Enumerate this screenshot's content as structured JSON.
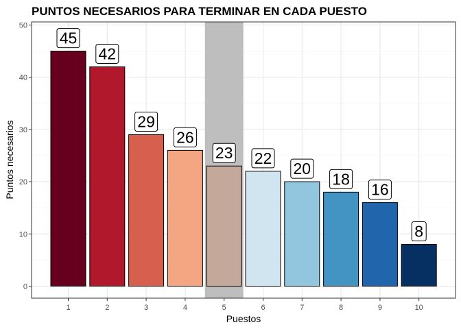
{
  "chart_data": {
    "type": "bar",
    "title": "PUNTOS NECESARIOS PARA TERMINAR EN CADA PUESTO",
    "xlabel": "Puestos",
    "ylabel": "Puntos necesarios",
    "categories": [
      "1",
      "2",
      "3",
      "4",
      "5",
      "6",
      "7",
      "8",
      "9",
      "10"
    ],
    "values": [
      45,
      42,
      29,
      26,
      23,
      22,
      20,
      18,
      16,
      8
    ],
    "data_labels": [
      "45",
      "42",
      "29",
      "26",
      "23",
      "22",
      "20",
      "18",
      "16",
      "8"
    ],
    "y_ticks": [
      "0",
      "10",
      "20",
      "30",
      "40",
      "50"
    ],
    "ylim": [
      0,
      50
    ],
    "highlighted_category": "5",
    "highlight_color": "#bebebe",
    "bar_colors": [
      "#67001f",
      "#b2182b",
      "#d6604d",
      "#f4a582",
      "#c4a99b",
      "#d1e5f0",
      "#92c5de",
      "#4393c3",
      "#2166ac",
      "#053061"
    ],
    "grid": true,
    "legend": "none"
  }
}
